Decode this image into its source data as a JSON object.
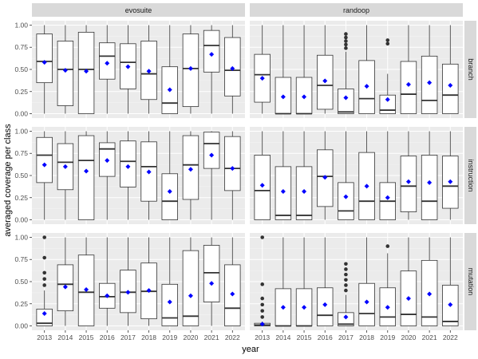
{
  "chart_data": {
    "type": "boxplot",
    "xlabel": "year",
    "ylabel": "averaged coverage per class",
    "x_categories": [
      "2013",
      "2014",
      "2015",
      "2016",
      "2017",
      "2018",
      "2019",
      "2020",
      "2021",
      "2022"
    ],
    "y_ticks": [
      "0.00",
      "0.25",
      "0.50",
      "0.75",
      "1.00"
    ],
    "ylim": [
      0,
      1
    ],
    "column_facets": [
      "evosuite",
      "randoop"
    ],
    "row_facets": [
      "branch",
      "instruction",
      "mutation"
    ],
    "mean_marker_color": "#0000ff",
    "panel_background": "#ebebeb",
    "strip_background": "#d9d9d9",
    "panels": [
      {
        "tool": "evosuite",
        "metric": "branch",
        "boxes": [
          {
            "year": "2013",
            "min": 0,
            "q1": 0.35,
            "median": 0.59,
            "q3": 0.9,
            "max": 1,
            "mean": 0.58,
            "outliers": []
          },
          {
            "year": "2014",
            "min": 0,
            "q1": 0.09,
            "median": 0.5,
            "q3": 0.82,
            "max": 1,
            "mean": 0.49,
            "outliers": []
          },
          {
            "year": "2015",
            "min": 0,
            "q1": 0.0,
            "median": 0.5,
            "q3": 0.92,
            "max": 1,
            "mean": 0.48,
            "outliers": []
          },
          {
            "year": "2016",
            "min": 0,
            "q1": 0.39,
            "median": 0.65,
            "q3": 0.8,
            "max": 1,
            "mean": 0.57,
            "outliers": []
          },
          {
            "year": "2017",
            "min": 0,
            "q1": 0.28,
            "median": 0.58,
            "q3": 0.79,
            "max": 1,
            "mean": 0.53,
            "outliers": []
          },
          {
            "year": "2018",
            "min": 0,
            "q1": 0.16,
            "median": 0.45,
            "q3": 0.82,
            "max": 1,
            "mean": 0.48,
            "outliers": []
          },
          {
            "year": "2019",
            "min": 0,
            "q1": 0.0,
            "median": 0.12,
            "q3": 0.53,
            "max": 1,
            "mean": 0.27,
            "outliers": []
          },
          {
            "year": "2020",
            "min": 0,
            "q1": 0.08,
            "median": 0.51,
            "q3": 0.9,
            "max": 1,
            "mean": 0.51,
            "outliers": []
          },
          {
            "year": "2021",
            "min": 0,
            "q1": 0.47,
            "median": 0.77,
            "q3": 0.94,
            "max": 1,
            "mean": 0.67,
            "outliers": []
          },
          {
            "year": "2022",
            "min": 0,
            "q1": 0.2,
            "median": 0.49,
            "q3": 0.86,
            "max": 1,
            "mean": 0.51,
            "outliers": []
          }
        ]
      },
      {
        "tool": "randoop",
        "metric": "branch",
        "boxes": [
          {
            "year": "2013",
            "min": 0,
            "q1": 0.13,
            "median": 0.44,
            "q3": 0.67,
            "max": 1,
            "mean": 0.4,
            "outliers": []
          },
          {
            "year": "2014",
            "min": 0,
            "q1": 0.0,
            "median": 0.0,
            "q3": 0.41,
            "max": 1,
            "mean": 0.19,
            "outliers": []
          },
          {
            "year": "2015",
            "min": 0,
            "q1": 0.0,
            "median": 0.0,
            "q3": 0.41,
            "max": 1,
            "mean": 0.19,
            "outliers": []
          },
          {
            "year": "2016",
            "min": 0,
            "q1": 0.05,
            "median": 0.32,
            "q3": 0.66,
            "max": 1,
            "mean": 0.37,
            "outliers": []
          },
          {
            "year": "2017",
            "min": 0,
            "q1": 0.0,
            "median": 0.02,
            "q3": 0.28,
            "max": 0.7,
            "mean": 0.18,
            "outliers": [
              0.74,
              0.78,
              0.82,
              0.86,
              0.9
            ]
          },
          {
            "year": "2018",
            "min": 0,
            "q1": 0.0,
            "median": 0.17,
            "q3": 0.6,
            "max": 1,
            "mean": 0.31,
            "outliers": []
          },
          {
            "year": "2019",
            "min": 0,
            "q1": 0.0,
            "median": 0.04,
            "q3": 0.21,
            "max": 0.45,
            "mean": 0.16,
            "outliers": [
              0.79,
              0.83
            ]
          },
          {
            "year": "2020",
            "min": 0,
            "q1": 0.0,
            "median": 0.22,
            "q3": 0.59,
            "max": 1,
            "mean": 0.33,
            "outliers": []
          },
          {
            "year": "2021",
            "min": 0,
            "q1": 0.0,
            "median": 0.15,
            "q3": 0.65,
            "max": 1,
            "mean": 0.35,
            "outliers": []
          },
          {
            "year": "2022",
            "min": 0,
            "q1": 0.0,
            "median": 0.21,
            "q3": 0.56,
            "max": 1,
            "mean": 0.32,
            "outliers": []
          }
        ]
      },
      {
        "tool": "evosuite",
        "metric": "instruction",
        "boxes": [
          {
            "year": "2013",
            "min": 0,
            "q1": 0.42,
            "median": 0.73,
            "q3": 0.93,
            "max": 1,
            "mean": 0.62,
            "outliers": []
          },
          {
            "year": "2014",
            "min": 0,
            "q1": 0.34,
            "median": 0.65,
            "q3": 0.86,
            "max": 1,
            "mean": 0.6,
            "outliers": []
          },
          {
            "year": "2015",
            "min": 0,
            "q1": 0.0,
            "median": 0.67,
            "q3": 0.95,
            "max": 1,
            "mean": 0.55,
            "outliers": []
          },
          {
            "year": "2016",
            "min": 0,
            "q1": 0.49,
            "median": 0.8,
            "q3": 0.87,
            "max": 1,
            "mean": 0.67,
            "outliers": []
          },
          {
            "year": "2017",
            "min": 0,
            "q1": 0.37,
            "median": 0.66,
            "q3": 0.89,
            "max": 1,
            "mean": 0.6,
            "outliers": []
          },
          {
            "year": "2018",
            "min": 0,
            "q1": 0.21,
            "median": 0.6,
            "q3": 0.88,
            "max": 1,
            "mean": 0.54,
            "outliers": []
          },
          {
            "year": "2019",
            "min": 0,
            "q1": 0.0,
            "median": 0.21,
            "q3": 0.52,
            "max": 1,
            "mean": 0.32,
            "outliers": []
          },
          {
            "year": "2020",
            "min": 0,
            "q1": 0.23,
            "median": 0.62,
            "q3": 0.95,
            "max": 1,
            "mean": 0.57,
            "outliers": []
          },
          {
            "year": "2021",
            "min": 0,
            "q1": 0.58,
            "median": 0.86,
            "q3": 0.99,
            "max": 1,
            "mean": 0.73,
            "outliers": []
          },
          {
            "year": "2022",
            "min": 0,
            "q1": 0.33,
            "median": 0.58,
            "q3": 0.94,
            "max": 1,
            "mean": 0.58,
            "outliers": []
          }
        ]
      },
      {
        "tool": "randoop",
        "metric": "instruction",
        "boxes": [
          {
            "year": "2013",
            "min": 0,
            "q1": 0.0,
            "median": 0.33,
            "q3": 0.73,
            "max": 1,
            "mean": 0.39,
            "outliers": []
          },
          {
            "year": "2014",
            "min": 0,
            "q1": 0.0,
            "median": 0.05,
            "q3": 0.6,
            "max": 1,
            "mean": 0.32,
            "outliers": []
          },
          {
            "year": "2015",
            "min": 0,
            "q1": 0.0,
            "median": 0.05,
            "q3": 0.6,
            "max": 1,
            "mean": 0.32,
            "outliers": []
          },
          {
            "year": "2016",
            "min": 0,
            "q1": 0.15,
            "median": 0.49,
            "q3": 0.79,
            "max": 1,
            "mean": 0.48,
            "outliers": []
          },
          {
            "year": "2017",
            "min": 0,
            "q1": 0.0,
            "median": 0.1,
            "q3": 0.42,
            "max": 1,
            "mean": 0.26,
            "outliers": []
          },
          {
            "year": "2018",
            "min": 0,
            "q1": 0.0,
            "median": 0.21,
            "q3": 0.76,
            "max": 1,
            "mean": 0.38,
            "outliers": []
          },
          {
            "year": "2019",
            "min": 0,
            "q1": 0.0,
            "median": 0.21,
            "q3": 0.42,
            "max": 1,
            "mean": 0.25,
            "outliers": []
          },
          {
            "year": "2020",
            "min": 0,
            "q1": 0.09,
            "median": 0.38,
            "q3": 0.72,
            "max": 1,
            "mean": 0.43,
            "outliers": []
          },
          {
            "year": "2021",
            "min": 0,
            "q1": 0.0,
            "median": 0.21,
            "q3": 0.73,
            "max": 1,
            "mean": 0.42,
            "outliers": []
          },
          {
            "year": "2022",
            "min": 0,
            "q1": 0.13,
            "median": 0.38,
            "q3": 0.72,
            "max": 1,
            "mean": 0.43,
            "outliers": []
          }
        ]
      },
      {
        "tool": "evosuite",
        "metric": "mutation",
        "boxes": [
          {
            "year": "2013",
            "min": 0,
            "q1": 0.0,
            "median": 0.03,
            "q3": 0.19,
            "max": 0.4,
            "mean": 0.14,
            "outliers": [
              0.46,
              0.53,
              0.6,
              0.77,
              1.0
            ]
          },
          {
            "year": "2014",
            "min": 0,
            "q1": 0.17,
            "median": 0.47,
            "q3": 0.69,
            "max": 1,
            "mean": 0.44,
            "outliers": []
          },
          {
            "year": "2015",
            "min": 0,
            "q1": 0.0,
            "median": 0.38,
            "q3": 0.8,
            "max": 1,
            "mean": 0.41,
            "outliers": []
          },
          {
            "year": "2016",
            "min": 0,
            "q1": 0.2,
            "median": 0.33,
            "q3": 0.48,
            "max": 1,
            "mean": 0.34,
            "outliers": []
          },
          {
            "year": "2017",
            "min": 0,
            "q1": 0.15,
            "median": 0.38,
            "q3": 0.63,
            "max": 1,
            "mean": 0.38,
            "outliers": []
          },
          {
            "year": "2018",
            "min": 0,
            "q1": 0.08,
            "median": 0.39,
            "q3": 0.71,
            "max": 1,
            "mean": 0.4,
            "outliers": []
          },
          {
            "year": "2019",
            "min": 0,
            "q1": 0.0,
            "median": 0.09,
            "q3": 0.47,
            "max": 1,
            "mean": 0.27,
            "outliers": []
          },
          {
            "year": "2020",
            "min": 0,
            "q1": 0.0,
            "median": 0.11,
            "q3": 0.85,
            "max": 1,
            "mean": 0.34,
            "outliers": []
          },
          {
            "year": "2021",
            "min": 0,
            "q1": 0.27,
            "median": 0.6,
            "q3": 0.91,
            "max": 1,
            "mean": 0.48,
            "outliers": []
          },
          {
            "year": "2022",
            "min": 0,
            "q1": 0.0,
            "median": 0.2,
            "q3": 0.69,
            "max": 1,
            "mean": 0.36,
            "outliers": []
          }
        ]
      },
      {
        "tool": "randoop",
        "metric": "mutation",
        "boxes": [
          {
            "year": "2013",
            "min": 0,
            "q1": 0.0,
            "median": 0.01,
            "q3": 0.03,
            "max": 0.05,
            "mean": 0.02,
            "outliers": [
              0.1,
              0.17,
              0.24,
              0.31,
              0.47,
              1.0
            ]
          },
          {
            "year": "2014",
            "min": 0,
            "q1": 0.0,
            "median": 0.0,
            "q3": 0.42,
            "max": 1,
            "mean": 0.21,
            "outliers": []
          },
          {
            "year": "2015",
            "min": 0,
            "q1": 0.0,
            "median": 0.0,
            "q3": 0.42,
            "max": 1,
            "mean": 0.21,
            "outliers": []
          },
          {
            "year": "2016",
            "min": 0,
            "q1": 0.0,
            "median": 0.12,
            "q3": 0.43,
            "max": 1,
            "mean": 0.24,
            "outliers": []
          },
          {
            "year": "2017",
            "min": 0,
            "q1": 0.0,
            "median": 0.02,
            "q3": 0.15,
            "max": 0.35,
            "mean": 0.1,
            "outliers": [
              0.4,
              0.46,
              0.52,
              0.58,
              0.64,
              0.7
            ]
          },
          {
            "year": "2018",
            "min": 0,
            "q1": 0.0,
            "median": 0.14,
            "q3": 0.48,
            "max": 1,
            "mean": 0.27,
            "outliers": []
          },
          {
            "year": "2019",
            "min": 0,
            "q1": 0.0,
            "median": 0.1,
            "q3": 0.43,
            "max": 0.82,
            "mean": 0.21,
            "outliers": [
              0.9
            ]
          },
          {
            "year": "2020",
            "min": 0,
            "q1": 0.0,
            "median": 0.13,
            "q3": 0.62,
            "max": 1,
            "mean": 0.31,
            "outliers": []
          },
          {
            "year": "2021",
            "min": 0,
            "q1": 0.0,
            "median": 0.1,
            "q3": 0.74,
            "max": 1,
            "mean": 0.36,
            "outliers": []
          },
          {
            "year": "2022",
            "min": 0,
            "q1": 0.0,
            "median": 0.05,
            "q3": 0.46,
            "max": 1,
            "mean": 0.24,
            "outliers": []
          }
        ]
      }
    ]
  }
}
